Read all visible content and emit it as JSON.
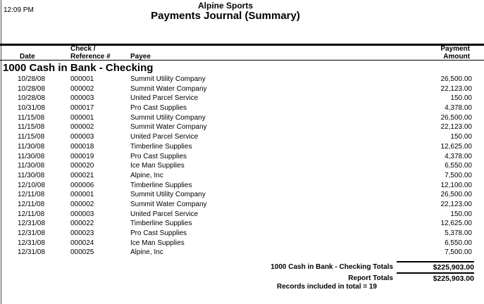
{
  "report": {
    "time": "12:09 PM",
    "company": "Alpine Sports",
    "title": "Payments Journal (Summary)"
  },
  "columns": {
    "date": "Date",
    "check_line1": "Check /",
    "check_line2": "Reference #",
    "payee": "Payee",
    "amount_line1": "Payment",
    "amount_line2": "Amount"
  },
  "section": {
    "heading": "1000 Cash in Bank - Checking"
  },
  "rows": [
    {
      "date": "10/28/08",
      "ref": "000001",
      "payee": "Summit Utility Company",
      "amount": "26,500.00"
    },
    {
      "date": "10/28/08",
      "ref": "000002",
      "payee": "Summit Water Company",
      "amount": "22,123.00"
    },
    {
      "date": "10/28/08",
      "ref": "000003",
      "payee": "United Parcel Service",
      "amount": "150.00"
    },
    {
      "date": "10/31/08",
      "ref": "000017",
      "payee": "Pro Cast Supplies",
      "amount": "4,378.00"
    },
    {
      "date": "11/15/08",
      "ref": "000001",
      "payee": "Summit Utility Company",
      "amount": "26,500.00"
    },
    {
      "date": "11/15/08",
      "ref": "000002",
      "payee": "Summit Water Company",
      "amount": "22,123.00"
    },
    {
      "date": "11/15/08",
      "ref": "000003",
      "payee": "United Parcel Service",
      "amount": "150.00"
    },
    {
      "date": "11/30/08",
      "ref": "000018",
      "payee": "Timberline Supplies",
      "amount": "12,625.00"
    },
    {
      "date": "11/30/08",
      "ref": "000019",
      "payee": "Pro Cast Supplies",
      "amount": "4,378.00"
    },
    {
      "date": "11/30/08",
      "ref": "000020",
      "payee": "Ice Man Supplies",
      "amount": "6,550.00"
    },
    {
      "date": "11/30/08",
      "ref": "000021",
      "payee": "Alpine, Inc",
      "amount": "7,500.00"
    },
    {
      "date": "12/10/08",
      "ref": "000006",
      "payee": "Timberline Supplies",
      "amount": "12,100.00"
    },
    {
      "date": "12/11/08",
      "ref": "000001",
      "payee": "Summit Utility Company",
      "amount": "26,500.00"
    },
    {
      "date": "12/11/08",
      "ref": "000002",
      "payee": "Summit Water Company",
      "amount": "22,123.00"
    },
    {
      "date": "12/11/08",
      "ref": "000003",
      "payee": "United Parcel Service",
      "amount": "150.00"
    },
    {
      "date": "12/31/08",
      "ref": "000022",
      "payee": "Timberline Supplies",
      "amount": "12,625.00"
    },
    {
      "date": "12/31/08",
      "ref": "000023",
      "payee": "Pro Cast Supplies",
      "amount": "5,378.00"
    },
    {
      "date": "12/31/08",
      "ref": "000024",
      "payee": "Ice Man Supplies",
      "amount": "6,550.00"
    },
    {
      "date": "12/31/08",
      "ref": "000025",
      "payee": "Alpine, Inc",
      "amount": "7,500.00"
    }
  ],
  "totals": {
    "section_label": "1000 Cash in Bank - Checking Totals",
    "section_amount": "$225,903.00",
    "report_label": "Report Totals",
    "report_amount": "$225,903.00",
    "records_note": "Records included in total = 19"
  }
}
